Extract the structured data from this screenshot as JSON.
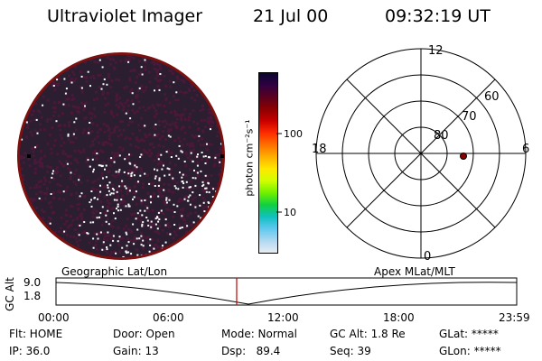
{
  "header": {
    "instrument": "Ultraviolet Imager",
    "date": "21 Jul 00",
    "time": "09:32:19 UT"
  },
  "colorbar": {
    "unit_label": "photon cm⁻²s⁻¹",
    "ticks": [
      "100",
      "10"
    ],
    "colors": [
      "#0a0630",
      "#300040",
      "#5a0020",
      "#8c0000",
      "#c80000",
      "#ff2c00",
      "#ff7000",
      "#ffb000",
      "#ffe800",
      "#d0ff00",
      "#70f000",
      "#10d040",
      "#10c0c0",
      "#60c8f0",
      "#b0d8f0",
      "#e8ecf4"
    ]
  },
  "polar_plot": {
    "clock_labels": {
      "top": "12",
      "left": "18",
      "right": "6",
      "bottom": "0"
    },
    "lat_labels": [
      "60",
      "70",
      "80"
    ],
    "marker_color": "#8a0000"
  },
  "image_colors": {
    "background": "#2a1e30",
    "dots": "#4a1838",
    "rim": "#7a1010",
    "highlight": "#ffffff"
  },
  "timeline": {
    "left_label": "Geographic Lat/Lon",
    "right_label": "Apex MLat/MLT",
    "axis_title": "GC Alt",
    "y_ticks": [
      "9.0",
      "1.8"
    ],
    "x_ticks": [
      "00:00",
      "06:00",
      "12:00",
      "18:00",
      "23:59"
    ],
    "cursor_color": "#c00000"
  },
  "footer": {
    "row1": [
      "Flt: HOME",
      "Door: Open",
      "Mode: Normal",
      "GC Alt: 1.8 Re",
      "GLat: *****"
    ],
    "row2": [
      "IP: 36.0",
      "Gain: 13",
      "Dsp:   89.4",
      "Seq: 39",
      "GLon: *****"
    ]
  }
}
